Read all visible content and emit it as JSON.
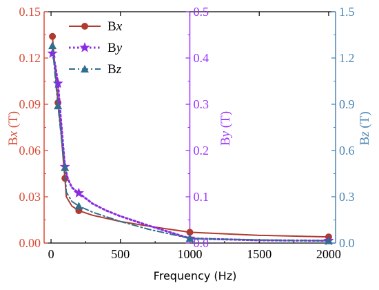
{
  "colors": {
    "bx": "#b03a2e",
    "by": "#8a2be2",
    "bz": "#2e6f8e",
    "bx_axis": "#d94b36",
    "by_axis": "#9b30ff",
    "bz_axis": "#4a86b4"
  },
  "chart_data": {
    "type": "line",
    "xlabel": "Frequency (Hz)",
    "xlim": [
      -50,
      2050
    ],
    "xticks": [
      0,
      500,
      1000,
      1500,
      2000
    ],
    "axes": {
      "left": {
        "label": "Bx (T)",
        "lim": [
          0,
          0.15
        ],
        "ticks": [
          "0.00",
          "0.03",
          "0.06",
          "0.09",
          "0.12",
          "0.15"
        ]
      },
      "middle": {
        "label": "By (T)",
        "lim": [
          0,
          0.5
        ],
        "ticks": [
          "0.0",
          "0.1",
          "0.2",
          "0.3",
          "0.4",
          "0.5"
        ],
        "position_x": 1000
      },
      "right": {
        "label": "Bz (T)",
        "lim": [
          0,
          1.5
        ],
        "ticks": [
          "0.0",
          "0.3",
          "0.6",
          "0.9",
          "1.2",
          "1.5"
        ]
      }
    },
    "legend": {
      "placement": "top-left"
    },
    "series": [
      {
        "name": "Bx",
        "axis": "left",
        "line": "solid",
        "marker": "circle",
        "x": [
          10,
          50,
          100,
          200,
          1000,
          2000
        ],
        "y": [
          0.134,
          0.091,
          0.042,
          0.021,
          0.007,
          0.004
        ],
        "curve_x": [
          10,
          30,
          50,
          70,
          90,
          100,
          110,
          150,
          200,
          300,
          500,
          700,
          1000,
          1500,
          2000
        ],
        "curve_y": [
          0.134,
          0.112,
          0.091,
          0.074,
          0.052,
          0.042,
          0.03,
          0.024,
          0.021,
          0.018,
          0.014,
          0.011,
          0.007,
          0.005,
          0.004
        ]
      },
      {
        "name": "By",
        "axis": "middle",
        "line": "dotted",
        "marker": "star",
        "x": [
          10,
          50,
          100,
          200,
          1000,
          2000
        ],
        "y": [
          0.41,
          0.345,
          0.165,
          0.108,
          0.01,
          0.005
        ],
        "curve_x": [
          10,
          30,
          50,
          70,
          90,
          100,
          120,
          150,
          200,
          300,
          400,
          500,
          700,
          850,
          1000,
          1500,
          2000
        ],
        "curve_y": [
          0.41,
          0.385,
          0.345,
          0.27,
          0.2,
          0.165,
          0.14,
          0.12,
          0.108,
          0.085,
          0.07,
          0.058,
          0.038,
          0.024,
          0.01,
          0.006,
          0.005
        ]
      },
      {
        "name": "Bz",
        "axis": "right",
        "line": "dashdot",
        "marker": "triangle",
        "x": [
          10,
          50,
          100,
          200,
          1000,
          2000
        ],
        "y": [
          1.28,
          0.89,
          0.49,
          0.24,
          0.03,
          0.015
        ],
        "curve_x": [
          10,
          30,
          50,
          70,
          90,
          100,
          110,
          150,
          200,
          300,
          500,
          700,
          1000,
          1500,
          2000
        ],
        "curve_y": [
          1.28,
          1.08,
          0.89,
          0.72,
          0.55,
          0.49,
          0.33,
          0.27,
          0.24,
          0.2,
          0.14,
          0.09,
          0.03,
          0.02,
          0.015
        ]
      }
    ]
  }
}
